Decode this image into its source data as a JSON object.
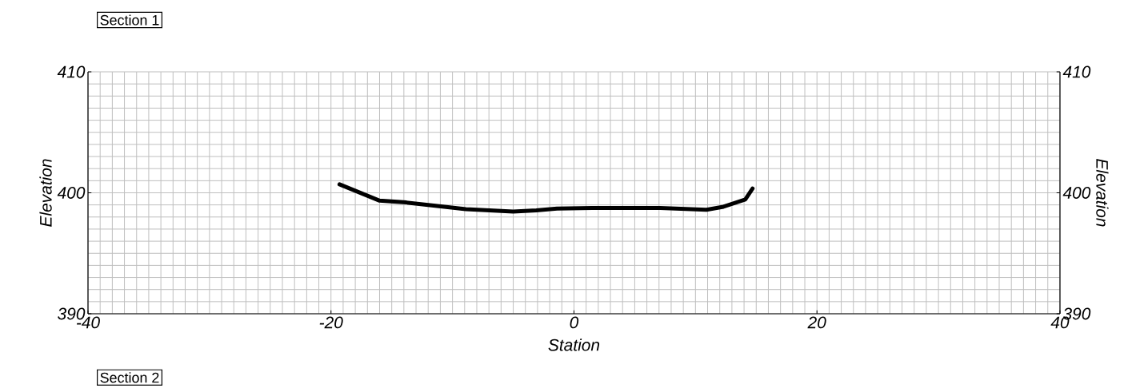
{
  "chart_data": {
    "type": "line",
    "title": "Section 1",
    "xlabel": "Station",
    "ylabel": "Elevation",
    "y2label": "Elevation",
    "annotations": [
      "Section 2"
    ],
    "x": [
      -19.3,
      -16.0,
      -13.8,
      -8.9,
      -5.0,
      -3.1,
      -1.4,
      1.5,
      7.1,
      10.9,
      12.3,
      14.1,
      14.7
    ],
    "series": [
      {
        "color": "#000000",
        "values": [
          400.7,
          399.35,
          399.2,
          398.65,
          398.45,
          398.55,
          398.7,
          398.75,
          398.75,
          398.6,
          398.85,
          399.45,
          400.35
        ]
      }
    ],
    "xlim": [
      -40,
      40
    ],
    "xticks": [
      -40,
      -20,
      0,
      20,
      40
    ],
    "ylim": [
      390,
      410
    ],
    "yticks": [
      390,
      400,
      410
    ],
    "y2lim": [
      390,
      410
    ],
    "y2ticks": [
      390,
      400,
      410
    ],
    "grid": true,
    "marker": "none",
    "line_style": "solid"
  }
}
